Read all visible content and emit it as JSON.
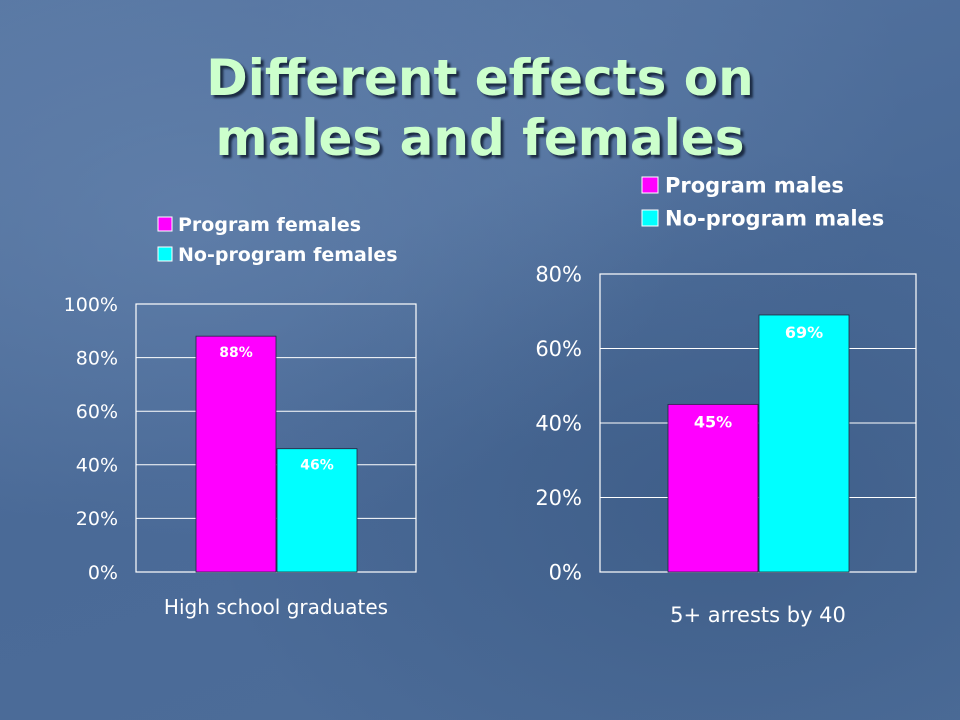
{
  "slide": {
    "title_line1": "Different effects on",
    "title_line2": "males and females"
  },
  "chart_data": [
    {
      "type": "bar",
      "categories": [
        "High school graduates"
      ],
      "series": [
        {
          "name": "Program females",
          "values": [
            88
          ],
          "label": "88%",
          "color": "#ff00ff"
        },
        {
          "name": "No-program females",
          "values": [
            46
          ],
          "label": "46%",
          "color": "#00ffff"
        }
      ],
      "xlabel": "High school graduates",
      "ylim": [
        0,
        100
      ],
      "yticks": [
        "0%",
        "20%",
        "40%",
        "60%",
        "80%",
        "100%"
      ],
      "grid": true,
      "legend": "top"
    },
    {
      "type": "bar",
      "categories": [
        "5+ arrests by 40"
      ],
      "series": [
        {
          "name": "Program males",
          "values": [
            45
          ],
          "label": "45%",
          "color": "#ff00ff"
        },
        {
          "name": "No-program males",
          "values": [
            69
          ],
          "label": "69%",
          "color": "#00ffff"
        }
      ],
      "xlabel": "5+ arrests by 40",
      "ylim": [
        0,
        80
      ],
      "yticks": [
        "0%",
        "20%",
        "40%",
        "60%",
        "80%"
      ],
      "grid": true,
      "legend": "top"
    }
  ]
}
